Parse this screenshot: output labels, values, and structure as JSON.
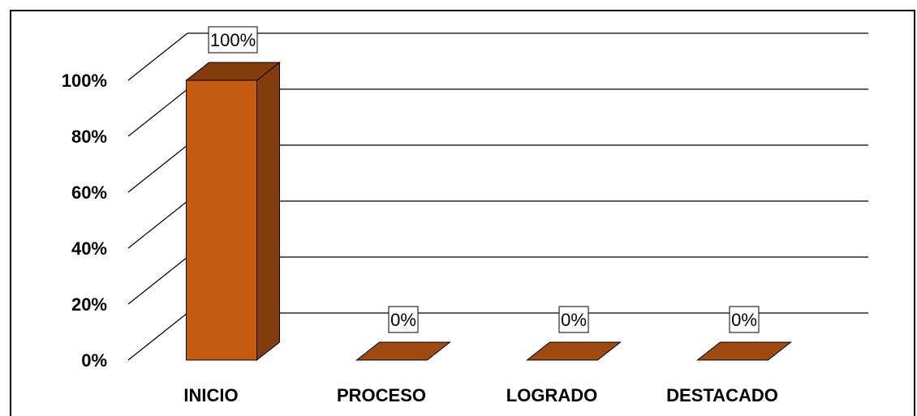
{
  "chart_data": {
    "type": "bar",
    "three_d": true,
    "categories": [
      "INICIO",
      "PROCESO",
      "LOGRADO",
      "DESTACADO"
    ],
    "values": [
      100,
      0,
      0,
      0
    ],
    "data_labels": [
      "100%",
      "0%",
      "0%",
      "0%"
    ],
    "yticks": [
      "0%",
      "20%",
      "40%",
      "60%",
      "80%",
      "100%"
    ],
    "ylim": [
      0,
      100
    ],
    "grid": true,
    "legend": "none",
    "title": "",
    "xlabel": "",
    "ylabel": ""
  },
  "colors": {
    "bar_front": "#C55A11",
    "bar_side": "#843C0C",
    "bar_top": "#9E4A10",
    "grid": "#000000"
  }
}
